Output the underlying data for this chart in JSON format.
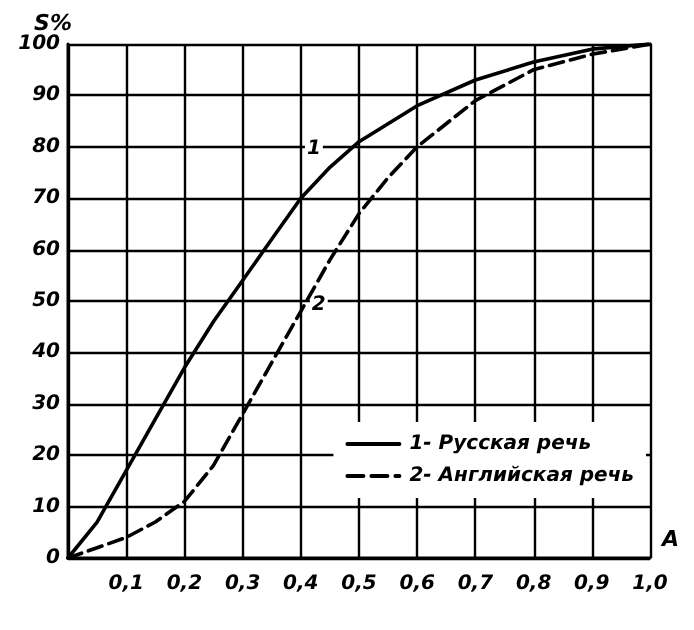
{
  "chart_data": {
    "type": "line",
    "xlabel": "A",
    "ylabel": "S%",
    "xlim": [
      0,
      1.0
    ],
    "xticks": [
      {
        "value": 0,
        "label": null
      },
      {
        "value": 0.1,
        "label": "0,1"
      },
      {
        "value": 0.2,
        "label": "0,2"
      },
      {
        "value": 0.3,
        "label": "0,3"
      },
      {
        "value": 0.4,
        "label": "0,4"
      },
      {
        "value": 0.5,
        "label": "0,5"
      },
      {
        "value": 0.6,
        "label": "0,6"
      },
      {
        "value": 0.7,
        "label": "0,7"
      },
      {
        "value": 0.8,
        "label": "0,8"
      },
      {
        "value": 0.9,
        "label": "0,9"
      },
      {
        "value": 1.0,
        "label": "1,0"
      }
    ],
    "ylim": [
      0,
      100
    ],
    "yticks": [
      0,
      10,
      20,
      30,
      40,
      50,
      60,
      70,
      80,
      90,
      100
    ],
    "grid": true,
    "legend": "bottom right",
    "marker": "none",
    "series": [
      {
        "name": "1- Русская речь",
        "color": "#000000",
        "line_style": "solid",
        "x": [
          0,
          0.05,
          0.1,
          0.15,
          0.2,
          0.25,
          0.3,
          0.35,
          0.4,
          0.45,
          0.5,
          0.6,
          0.7,
          0.8,
          0.9,
          1.0
        ],
        "values": [
          0,
          7,
          17,
          27,
          37,
          46,
          54,
          62,
          70,
          76,
          81,
          88,
          93,
          96.5,
          99,
          100
        ]
      },
      {
        "name": "2- Английская речь",
        "color": "#000000",
        "line_style": "dashed",
        "x": [
          0,
          0.05,
          0.1,
          0.15,
          0.2,
          0.25,
          0.3,
          0.35,
          0.4,
          0.45,
          0.5,
          0.55,
          0.6,
          0.7,
          0.8,
          0.9,
          1.0
        ],
        "values": [
          0,
          2,
          4,
          7,
          11,
          18,
          28,
          38,
          48,
          58,
          67,
          74,
          80,
          89,
          95,
          98,
          100
        ]
      }
    ],
    "annotations": [
      {
        "text": "1",
        "x": 0.45,
        "y": 76
      },
      {
        "text": "2",
        "x": 0.4,
        "y": 48
      }
    ]
  }
}
